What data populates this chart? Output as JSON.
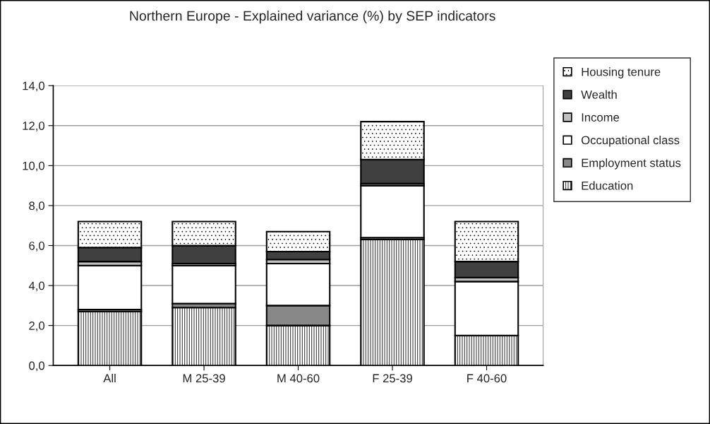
{
  "chart_data": {
    "type": "bar",
    "stacked": true,
    "title": "Northern Europe - Explained variance (%) by SEP indicators",
    "categories": [
      "All",
      "M 25-39",
      "M 40-60",
      "F 25-39",
      "F 40-60"
    ],
    "series": [
      {
        "name": "Education",
        "color": "#000000",
        "values": [
          2.7,
          2.9,
          2.0,
          6.3,
          1.5
        ]
      },
      {
        "name": "Employment status",
        "color": "#888888",
        "values": [
          0.1,
          0.2,
          1.0,
          0.1,
          0.0
        ]
      },
      {
        "name": "Occupational class",
        "color": "#ffffff",
        "values": [
          2.2,
          1.9,
          2.1,
          2.6,
          2.7
        ]
      },
      {
        "name": "Income",
        "color": "#c0c0c0",
        "values": [
          0.2,
          0.1,
          0.2,
          0.1,
          0.2
        ]
      },
      {
        "name": "Wealth",
        "color": "#404040",
        "values": [
          0.7,
          0.9,
          0.4,
          1.2,
          0.8
        ]
      },
      {
        "name": "Housing tenure",
        "color": "#000000",
        "values": [
          1.3,
          1.2,
          1.0,
          1.9,
          2.0
        ]
      }
    ],
    "ylim": [
      0,
      14
    ],
    "yticks": [
      {
        "value": 0,
        "label": "0,0"
      },
      {
        "value": 2,
        "label": "2,0"
      },
      {
        "value": 4,
        "label": "4,0"
      },
      {
        "value": 6,
        "label": "6,0"
      },
      {
        "value": 8,
        "label": "8,0"
      },
      {
        "value": 10,
        "label": "10,0"
      },
      {
        "value": 12,
        "label": "12,0"
      },
      {
        "value": 14,
        "label": "14,0"
      }
    ],
    "grid": "y",
    "legend": "right"
  }
}
